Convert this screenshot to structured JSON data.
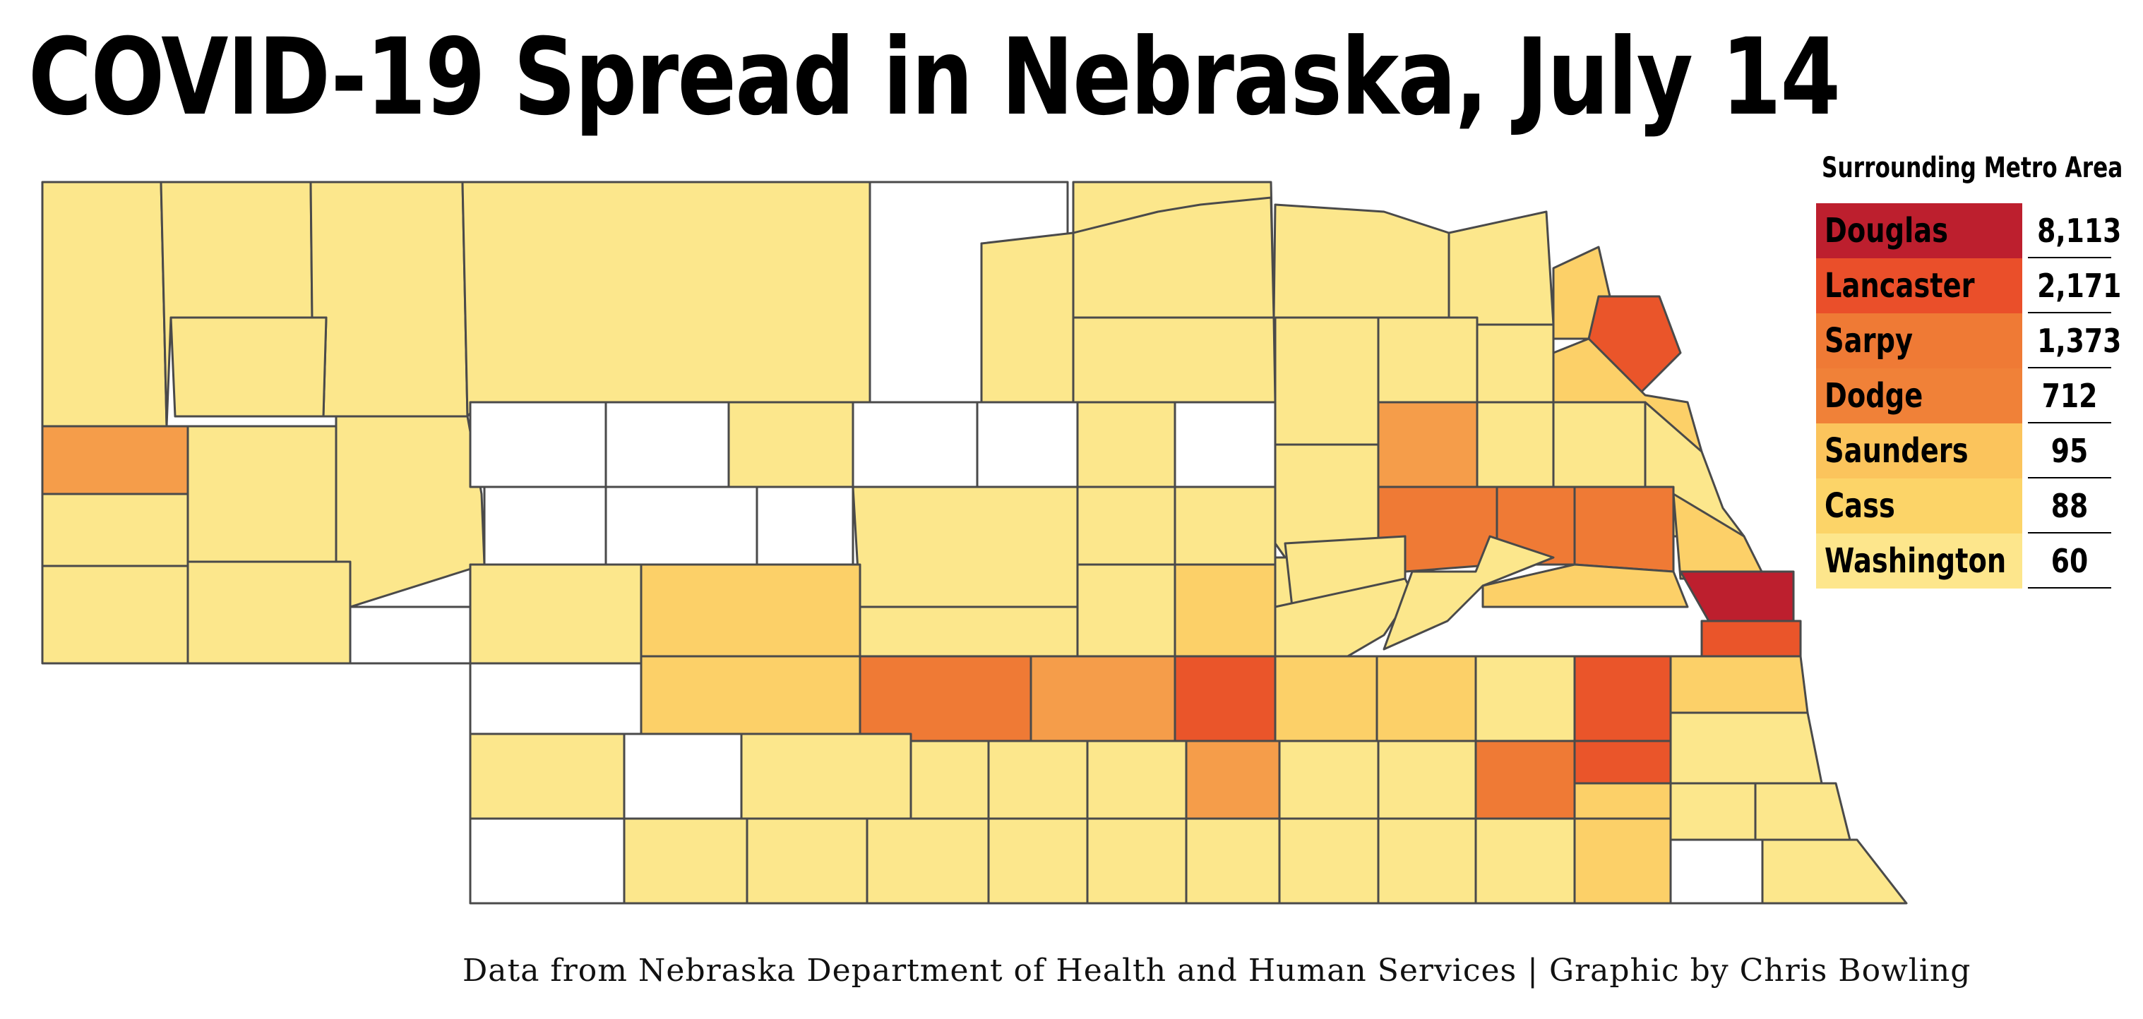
{
  "title": "COVID-19 Spread in Nebraska, July 14",
  "credit": "Data from Nebraska Department of Health and Human Services | Graphic by Chris Bowling",
  "colors": {
    "none": "#ffffff",
    "low": "#fce78c",
    "mid": "#fcd068",
    "midhigh": "#f59d4a",
    "high": "#ef7a35",
    "veryhigh": "#ea552a",
    "max": "#bd1f2e"
  },
  "metro": {
    "heading": "Surrounding Metro Area",
    "rows": [
      {
        "county": "Douglas",
        "cases": "8,113",
        "color": "#bd1f2e"
      },
      {
        "county": "Lancaster",
        "cases": "2,171",
        "color": "#ea4f2a"
      },
      {
        "county": "Sarpy",
        "cases": "1,373",
        "color": "#ef7a35"
      },
      {
        "county": "Dodge",
        "cases": "712",
        "color": "#f08138"
      },
      {
        "county": "Saunders",
        "cases": "95",
        "color": "#fbc45c"
      },
      {
        "county": "Cass",
        "cases": "88",
        "color": "#fcd468"
      },
      {
        "county": "Washington",
        "cases": "60",
        "color": "#fde68c"
      }
    ]
  }
}
